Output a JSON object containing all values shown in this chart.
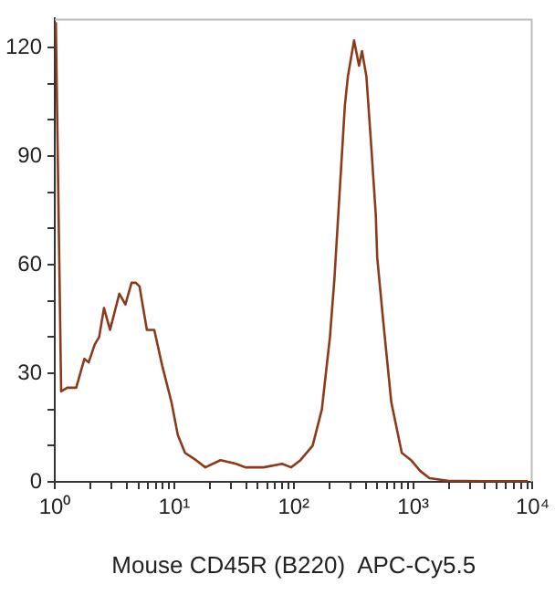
{
  "chart_data": {
    "type": "line",
    "xlabel": "Mouse CD45R (B220)  APC-Cy5.5",
    "log": "x",
    "grid": false,
    "legend": false,
    "marker": "none",
    "line_style": "solid",
    "xlim": [
      1,
      10000
    ],
    "xticks": [
      {
        "value": 1,
        "label": "10⁰"
      },
      {
        "value": 2,
        "label": null
      },
      {
        "value": 3,
        "label": null
      },
      {
        "value": 4,
        "label": null
      },
      {
        "value": 5,
        "label": null
      },
      {
        "value": 6,
        "label": null
      },
      {
        "value": 7,
        "label": null
      },
      {
        "value": 8,
        "label": null
      },
      {
        "value": 9,
        "label": null
      },
      {
        "value": 10,
        "label": "10¹"
      },
      {
        "value": 20,
        "label": null
      },
      {
        "value": 30,
        "label": null
      },
      {
        "value": 40,
        "label": null
      },
      {
        "value": 50,
        "label": null
      },
      {
        "value": 60,
        "label": null
      },
      {
        "value": 70,
        "label": null
      },
      {
        "value": 80,
        "label": null
      },
      {
        "value": 90,
        "label": null
      },
      {
        "value": 100,
        "label": "10²"
      },
      {
        "value": 200,
        "label": null
      },
      {
        "value": 300,
        "label": null
      },
      {
        "value": 400,
        "label": null
      },
      {
        "value": 500,
        "label": null
      },
      {
        "value": 600,
        "label": null
      },
      {
        "value": 700,
        "label": null
      },
      {
        "value": 800,
        "label": null
      },
      {
        "value": 900,
        "label": null
      },
      {
        "value": 1000,
        "label": "10³"
      },
      {
        "value": 2000,
        "label": null
      },
      {
        "value": 3000,
        "label": null
      },
      {
        "value": 4000,
        "label": null
      },
      {
        "value": 5000,
        "label": null
      },
      {
        "value": 6000,
        "label": null
      },
      {
        "value": 7000,
        "label": null
      },
      {
        "value": 8000,
        "label": null
      },
      {
        "value": 9000,
        "label": null
      },
      {
        "value": 10000,
        "label": "10⁴"
      }
    ],
    "ylim": [
      0,
      128
    ],
    "yticks": [
      0,
      {
        "value": 10,
        "label": null
      },
      {
        "value": 20,
        "label": null
      },
      30,
      {
        "value": 40,
        "label": null
      },
      {
        "value": 50,
        "label": null
      },
      60,
      {
        "value": 70,
        "label": null
      },
      {
        "value": 80,
        "label": null
      },
      90,
      {
        "value": 100,
        "label": null
      },
      {
        "value": 110,
        "label": null
      },
      120
    ],
    "x": [
      1.02,
      1.13,
      1.27,
      1.51,
      1.77,
      1.92,
      2.16,
      2.35,
      2.58,
      2.9,
      3.47,
      3.9,
      4.39,
      4.77,
      5.12,
      5.9,
      6.8,
      7.94,
      9.48,
      10.7,
      12.3,
      15.2,
      18.2,
      24.4,
      32.9,
      39.3,
      56,
      80,
      95,
      114,
      144,
      172,
      201,
      219,
      268,
      284,
      320,
      352,
      373,
      406,
      441,
      486,
      500,
      563,
      656,
      803,
      960,
      1146,
      1369,
      1950,
      3980,
      9100
    ],
    "series": [
      {
        "color": "#8b3a1a",
        "values": [
          127,
          25,
          26,
          26,
          34,
          33,
          38,
          40,
          48,
          42,
          52,
          49,
          55,
          55,
          54,
          42,
          42,
          32,
          22,
          13,
          8,
          6,
          4,
          6,
          5,
          4,
          4,
          5,
          4,
          6,
          10,
          20,
          40,
          56,
          104,
          112,
          122,
          115,
          119,
          112,
          95,
          74,
          62,
          44,
          22,
          8,
          6,
          3,
          1,
          0.3,
          0.2,
          0.2
        ]
      }
    ]
  }
}
